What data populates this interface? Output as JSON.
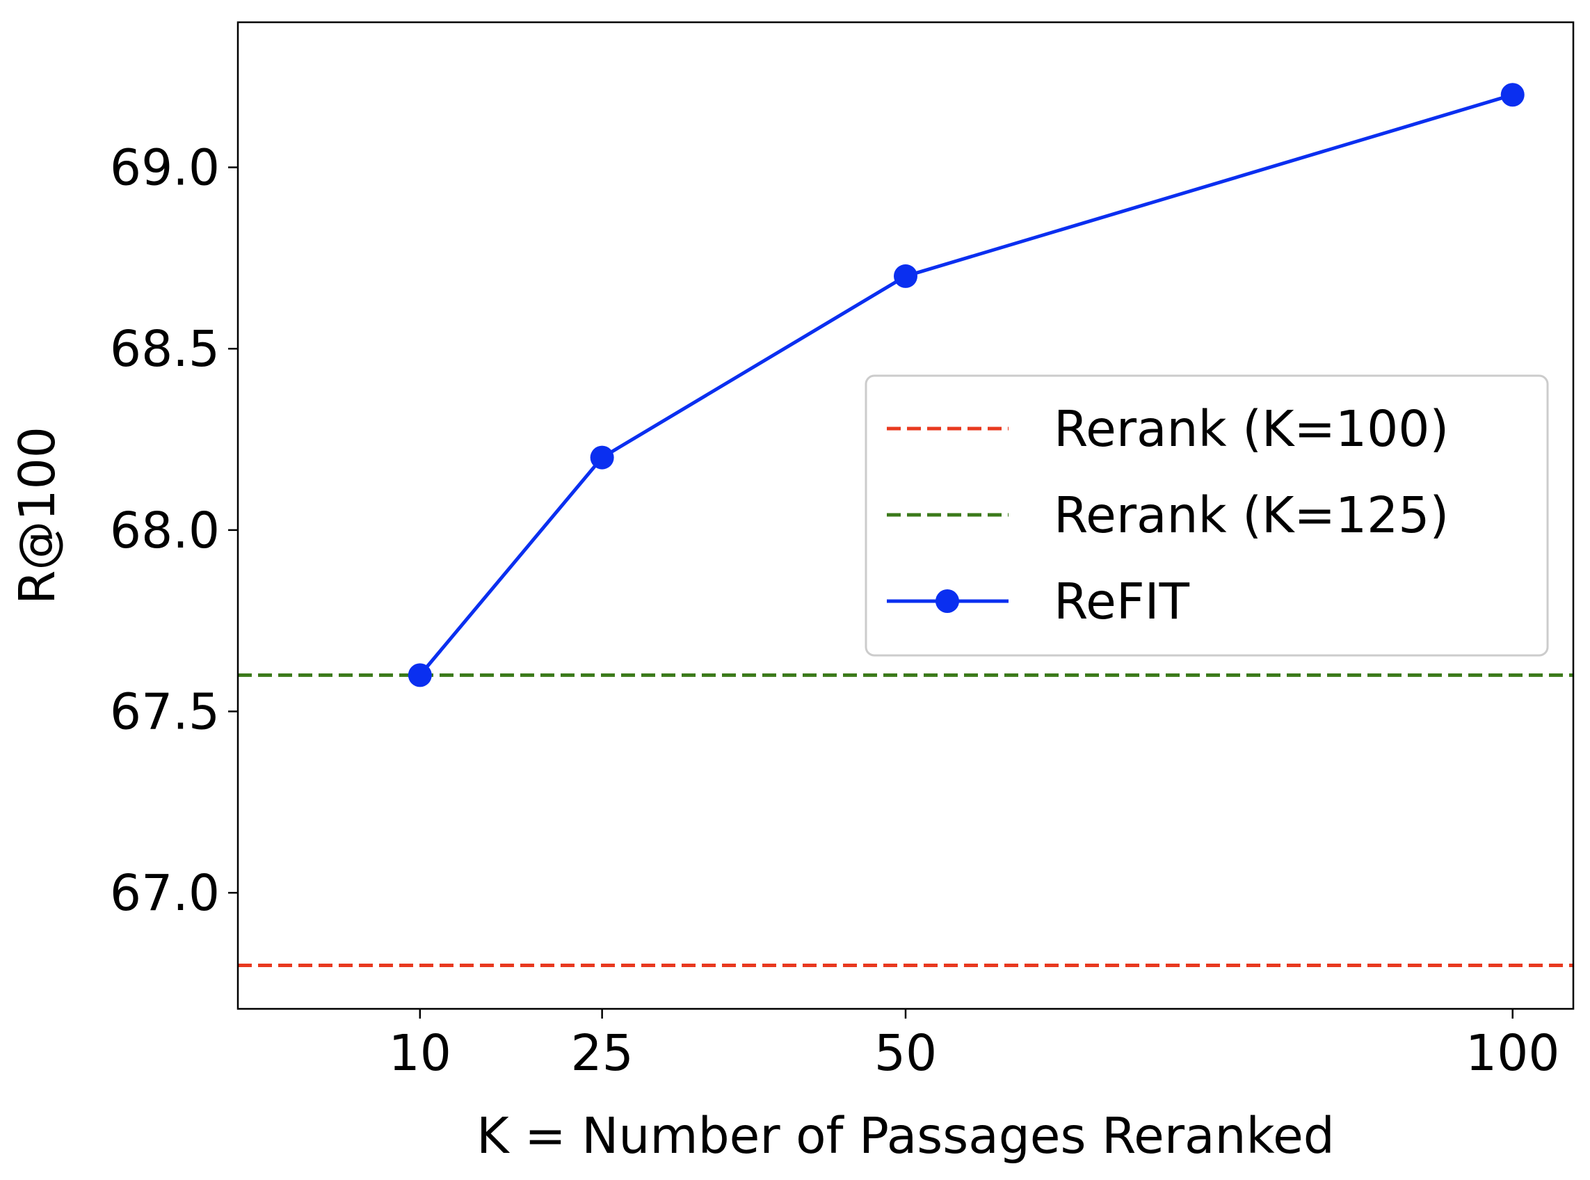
{
  "chart_data": {
    "type": "line",
    "title": "",
    "xlabel": "K = Number of Passages Reranked",
    "ylabel": "R@100",
    "x_ticks": [
      10,
      25,
      50,
      100
    ],
    "x_tick_labels": [
      "10",
      "25",
      "50",
      "100"
    ],
    "xlim": [
      -5,
      105
    ],
    "y_ticks": [
      67.0,
      67.5,
      68.0,
      68.5,
      69.0
    ],
    "y_tick_labels": [
      "67.0",
      "67.5",
      "68.0",
      "68.5",
      "69.0"
    ],
    "ylim": [
      66.68,
      69.4
    ],
    "grid": false,
    "legend_position": "center-right",
    "series": [
      {
        "name": "Rerank (K=100)",
        "kind": "hline",
        "style": "dashed",
        "color": "#e8391f",
        "y": 66.8
      },
      {
        "name": "Rerank (K=125)",
        "kind": "hline",
        "style": "dashed",
        "color": "#3b7a1a",
        "y": 67.6
      },
      {
        "name": "ReFIT",
        "kind": "line",
        "style": "solid",
        "marker": "circle",
        "color": "#0a2ff0",
        "x": [
          10,
          25,
          50,
          100
        ],
        "y": [
          67.6,
          68.2,
          68.7,
          69.2
        ]
      }
    ]
  }
}
